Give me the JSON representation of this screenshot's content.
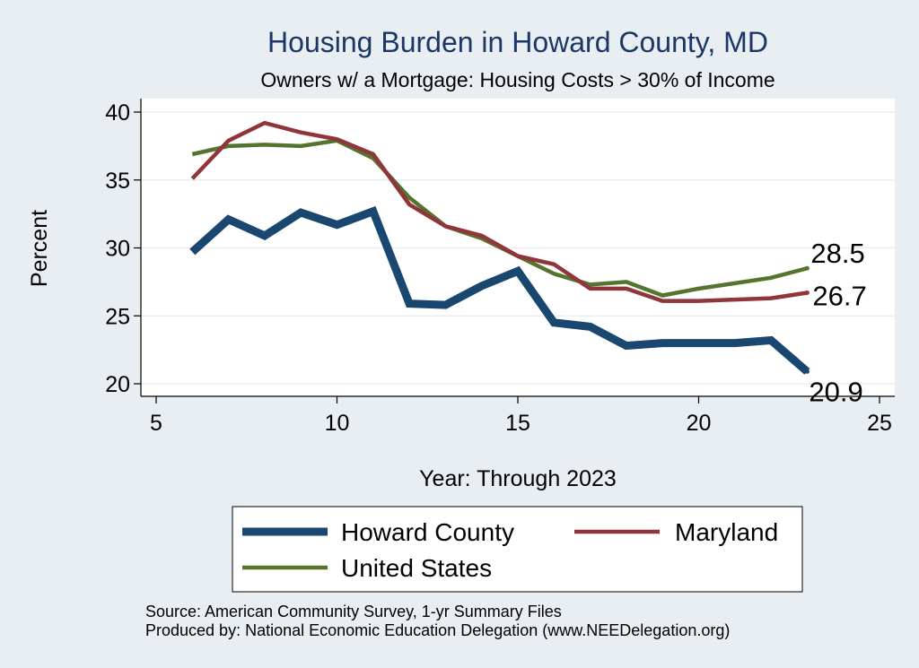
{
  "chart_data": {
    "type": "line",
    "title": "Housing Burden in Howard County, MD",
    "subtitle": "Owners w/ a Mortgage: Housing Costs > 30% of Income",
    "xlabel": "Year: Through 2023",
    "ylabel": "Percent",
    "xlim": [
      5,
      25
    ],
    "ylim": [
      20,
      40
    ],
    "xticks": [
      5,
      10,
      15,
      20,
      25
    ],
    "yticks": [
      20,
      25,
      30,
      35,
      40
    ],
    "grid": true,
    "legend_position": "bottom",
    "x": [
      6,
      7,
      8,
      9,
      10,
      11,
      12,
      13,
      14,
      15,
      16,
      17,
      18,
      19,
      20,
      21,
      22,
      23
    ],
    "series": [
      {
        "name": "Howard County",
        "color": "#1a476f",
        "values": [
          29.7,
          32.1,
          30.9,
          32.6,
          31.7,
          32.7,
          25.9,
          25.8,
          27.2,
          28.3,
          24.5,
          24.2,
          22.8,
          23.0,
          23.0,
          23.0,
          23.2,
          20.9
        ],
        "end_label": "20.9"
      },
      {
        "name": "Maryland",
        "color": "#90353b",
        "values": [
          35.1,
          37.9,
          39.2,
          38.5,
          38.0,
          36.9,
          33.2,
          31.6,
          30.9,
          29.4,
          28.8,
          27.0,
          27.0,
          26.1,
          26.1,
          26.2,
          26.3,
          26.7
        ],
        "end_label": "26.7"
      },
      {
        "name": "United States",
        "color": "#55752f",
        "values": [
          36.9,
          37.5,
          37.6,
          37.5,
          37.9,
          36.6,
          33.7,
          31.6,
          30.7,
          29.4,
          28.1,
          27.3,
          27.5,
          26.5,
          27.0,
          27.4,
          27.8,
          28.5
        ],
        "end_label": "28.5"
      }
    ]
  },
  "source_lines": [
    "Source: American Community Survey, 1-yr Summary Files",
    "Produced by: National Economic Education Delegation (www.NEEDelegation.org)"
  ]
}
